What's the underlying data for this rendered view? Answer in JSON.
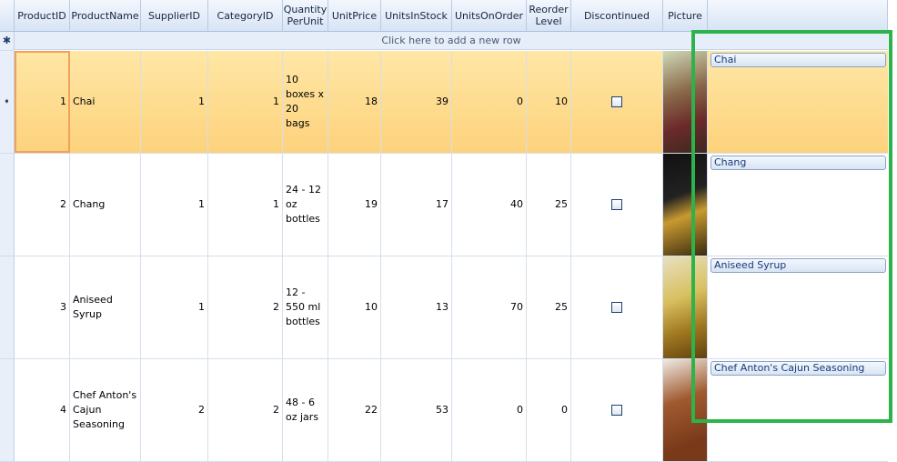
{
  "columns": [
    "ProductID",
    "ProductName",
    "SupplierID",
    "CategoryID",
    "Quantity PerUnit",
    "UnitPrice",
    "UnitsInStock",
    "UnitsOnOrder",
    "Reorder Level",
    "Discontinued",
    "Picture",
    ""
  ],
  "new_row_text": "Click here to add a new row",
  "new_row_icon": "asterisk-icon",
  "current_row_icon": "arrow-right-icon",
  "highlight_color": "#2db34a",
  "rows": [
    {
      "id": "1",
      "name": "Chai",
      "supplier": "1",
      "category": "1",
      "qty": "10 boxes x 20 bags",
      "price": "18",
      "stock": "39",
      "order": "0",
      "reorder": "10",
      "discontinued": false,
      "tag": "Chai",
      "selected": true
    },
    {
      "id": "2",
      "name": "Chang",
      "supplier": "1",
      "category": "1",
      "qty": "24 - 12 oz bottles",
      "price": "19",
      "stock": "17",
      "order": "40",
      "reorder": "25",
      "discontinued": false,
      "tag": "Chang"
    },
    {
      "id": "3",
      "name": "Aniseed Syrup",
      "supplier": "1",
      "category": "2",
      "qty": "12 - 550 ml bottles",
      "price": "10",
      "stock": "13",
      "order": "70",
      "reorder": "25",
      "discontinued": false,
      "tag": "Aniseed Syrup"
    },
    {
      "id": "4",
      "name": "Chef Anton's Cajun Seasoning",
      "supplier": "2",
      "category": "2",
      "qty": "48 - 6 oz jars",
      "price": "22",
      "stock": "53",
      "order": "0",
      "reorder": "0",
      "discontinued": false,
      "tag": "Chef Anton's Cajun Seasoning"
    }
  ]
}
